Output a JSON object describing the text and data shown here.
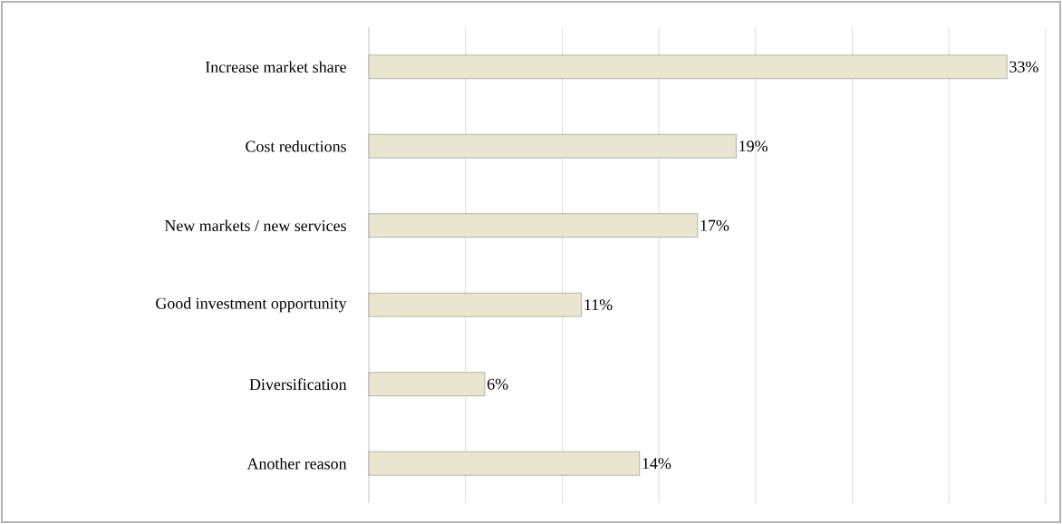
{
  "chart_data": {
    "type": "bar",
    "orientation": "horizontal",
    "categories": [
      "Increase market share",
      "Cost reductions",
      "New markets / new services",
      "Good investment opportunity",
      "Diversification",
      "Another reason"
    ],
    "values": [
      33,
      19,
      17,
      11,
      6,
      14
    ],
    "value_labels": [
      "33%",
      "19%",
      "17%",
      "11%",
      "6%",
      "14%"
    ],
    "color": "#e9e5cf",
    "xlim": [
      0,
      35
    ],
    "xticks": [
      {
        "value": 0,
        "label": null
      },
      {
        "value": 5,
        "label": null
      },
      {
        "value": 10,
        "label": null
      },
      {
        "value": 15,
        "label": null
      },
      {
        "value": 20,
        "label": null
      },
      {
        "value": 25,
        "label": null
      },
      {
        "value": 30,
        "label": null
      },
      {
        "value": 35,
        "label": null
      }
    ],
    "grid": "x",
    "tick_labels": "y"
  }
}
